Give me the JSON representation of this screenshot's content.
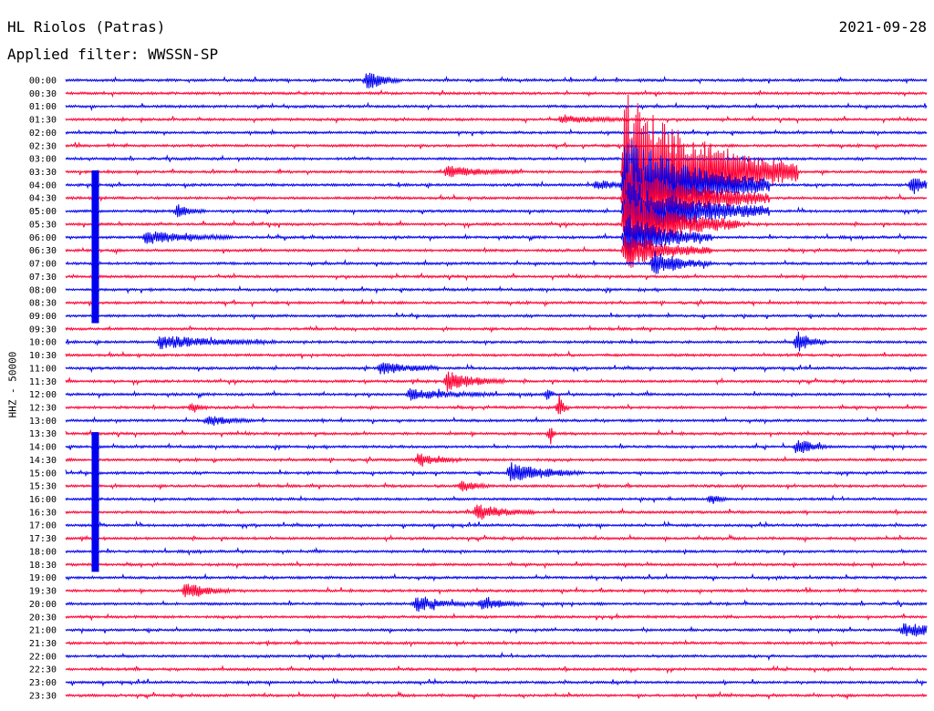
{
  "header": {
    "station": "HL Riolos (Patras)",
    "date": "2021-09-28",
    "filter": "Applied filter: WWSSN-SP"
  },
  "chart_data": {
    "type": "line",
    "subtype": "helicorder",
    "ylabel": "HHZ - 50000",
    "trace_colors": [
      "#0000ee",
      "#ff0033"
    ],
    "rows": [
      {
        "time": "00:00",
        "color": "#0000ee"
      },
      {
        "time": "00:30",
        "color": "#ff0033"
      },
      {
        "time": "01:00",
        "color": "#0000ee"
      },
      {
        "time": "01:30",
        "color": "#ff0033"
      },
      {
        "time": "02:00",
        "color": "#0000ee"
      },
      {
        "time": "02:30",
        "color": "#ff0033"
      },
      {
        "time": "03:00",
        "color": "#0000ee"
      },
      {
        "time": "03:30",
        "color": "#ff0033"
      },
      {
        "time": "04:00",
        "color": "#0000ee"
      },
      {
        "time": "04:30",
        "color": "#ff0033"
      },
      {
        "time": "05:00",
        "color": "#0000ee"
      },
      {
        "time": "05:30",
        "color": "#ff0033"
      },
      {
        "time": "06:00",
        "color": "#0000ee"
      },
      {
        "time": "06:30",
        "color": "#ff0033"
      },
      {
        "time": "07:00",
        "color": "#0000ee"
      },
      {
        "time": "07:30",
        "color": "#ff0033"
      },
      {
        "time": "08:00",
        "color": "#0000ee"
      },
      {
        "time": "08:30",
        "color": "#ff0033"
      },
      {
        "time": "09:00",
        "color": "#0000ee"
      },
      {
        "time": "09:30",
        "color": "#ff0033"
      },
      {
        "time": "10:00",
        "color": "#0000ee"
      },
      {
        "time": "10:30",
        "color": "#ff0033"
      },
      {
        "time": "11:00",
        "color": "#0000ee"
      },
      {
        "time": "11:30",
        "color": "#ff0033"
      },
      {
        "time": "12:00",
        "color": "#0000ee"
      },
      {
        "time": "12:30",
        "color": "#ff0033"
      },
      {
        "time": "13:00",
        "color": "#0000ee"
      },
      {
        "time": "13:30",
        "color": "#ff0033"
      },
      {
        "time": "14:00",
        "color": "#0000ee"
      },
      {
        "time": "14:30",
        "color": "#ff0033"
      },
      {
        "time": "15:00",
        "color": "#0000ee"
      },
      {
        "time": "15:30",
        "color": "#ff0033"
      },
      {
        "time": "16:00",
        "color": "#0000ee"
      },
      {
        "time": "16:30",
        "color": "#ff0033"
      },
      {
        "time": "17:00",
        "color": "#0000ee"
      },
      {
        "time": "17:30",
        "color": "#ff0033"
      },
      {
        "time": "18:00",
        "color": "#0000ee"
      },
      {
        "time": "18:30",
        "color": "#ff0033"
      },
      {
        "time": "19:00",
        "color": "#0000ee"
      },
      {
        "time": "19:30",
        "color": "#ff0033"
      },
      {
        "time": "20:00",
        "color": "#0000ee"
      },
      {
        "time": "20:30",
        "color": "#ff0033"
      },
      {
        "time": "21:00",
        "color": "#0000ee"
      },
      {
        "time": "21:30",
        "color": "#ff0033"
      },
      {
        "time": "22:00",
        "color": "#0000ee"
      },
      {
        "time": "22:30",
        "color": "#ff0033"
      },
      {
        "time": "23:00",
        "color": "#0000ee"
      },
      {
        "time": "23:30",
        "color": "#ff0033"
      }
    ],
    "events": [
      {
        "row": 0,
        "minute": 10.5,
        "amp": 1.6,
        "dur": 1.2
      },
      {
        "row": 3,
        "minute": 17.3,
        "amp": 0.5,
        "dur": 3
      },
      {
        "row": 7,
        "minute": 13.3,
        "amp": 0.9,
        "dur": 2.5
      },
      {
        "row": 8,
        "minute": 29.5,
        "amp": 1.5,
        "dur": 1
      },
      {
        "row": 8,
        "minute": 18.5,
        "amp": 0.8,
        "dur": 1.5
      },
      {
        "row": 7,
        "minute": 19.5,
        "amp": 13,
        "dur": 6
      },
      {
        "row": 8,
        "minute": 19.5,
        "amp": 8,
        "dur": 5
      },
      {
        "row": 9,
        "minute": 19.5,
        "amp": 6,
        "dur": 5
      },
      {
        "row": 10,
        "minute": 19.5,
        "amp": 5,
        "dur": 5
      },
      {
        "row": 11,
        "minute": 19.5,
        "amp": 5,
        "dur": 4
      },
      {
        "row": 12,
        "minute": 19.5,
        "amp": 4,
        "dur": 3
      },
      {
        "row": 13,
        "minute": 19.5,
        "amp": 3,
        "dur": 3
      },
      {
        "row": 14,
        "minute": 20.5,
        "amp": 2,
        "dur": 2
      },
      {
        "row": 10,
        "minute": 3.9,
        "amp": 1,
        "dur": 1
      },
      {
        "row": 12,
        "minute": 2.8,
        "amp": 1,
        "dur": 3
      },
      {
        "row": 20,
        "minute": 3.3,
        "amp": 1,
        "dur": 4
      },
      {
        "row": 20,
        "minute": 25.5,
        "amp": 1.7,
        "dur": 1
      },
      {
        "row": 23,
        "minute": 13.3,
        "amp": 1.6,
        "dur": 2
      },
      {
        "row": 22,
        "minute": 11,
        "amp": 1,
        "dur": 2
      },
      {
        "row": 24,
        "minute": 12,
        "amp": 0.9,
        "dur": 3
      },
      {
        "row": 25,
        "minute": 4.4,
        "amp": 1,
        "dur": 0.5
      },
      {
        "row": 25,
        "minute": 17.2,
        "amp": 1.8,
        "dur": 0.3
      },
      {
        "row": 26,
        "minute": 5,
        "amp": 0.8,
        "dur": 1.5
      },
      {
        "row": 28,
        "minute": 25.5,
        "amp": 1.4,
        "dur": 1
      },
      {
        "row": 29,
        "minute": 12.3,
        "amp": 1,
        "dur": 1.5
      },
      {
        "row": 30,
        "minute": 15.5,
        "amp": 1.6,
        "dur": 2.5
      },
      {
        "row": 31,
        "minute": 13.8,
        "amp": 0.8,
        "dur": 1
      },
      {
        "row": 33,
        "minute": 14.3,
        "amp": 1.3,
        "dur": 2
      },
      {
        "row": 32,
        "minute": 22.5,
        "amp": 0.9,
        "dur": 0.5
      },
      {
        "row": 39,
        "minute": 4.2,
        "amp": 1.4,
        "dur": 1.5
      },
      {
        "row": 40,
        "minute": 12.2,
        "amp": 1.2,
        "dur": 2
      },
      {
        "row": 40,
        "minute": 14.5,
        "amp": 1,
        "dur": 1.5
      },
      {
        "row": 42,
        "minute": 29.2,
        "amp": 1.1,
        "dur": 2.5
      },
      {
        "row": 27,
        "minute": 16.9,
        "amp": 1.8,
        "dur": 0.2
      },
      {
        "row": 24,
        "minute": 16.8,
        "amp": 1.2,
        "dur": 0.2
      }
    ],
    "spikes": [
      {
        "from_row": 8,
        "to_row": 18,
        "minute": 1.0
      },
      {
        "from_row": 28,
        "to_row": 37,
        "minute": 1.0
      }
    ]
  }
}
